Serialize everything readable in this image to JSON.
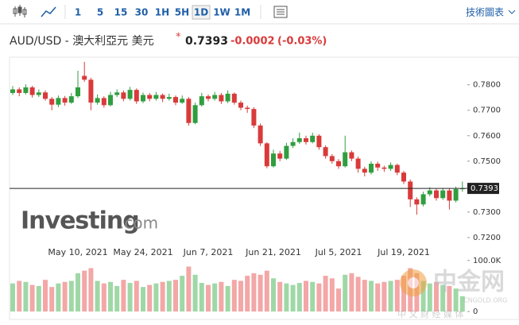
{
  "toolbar": {
    "timeframes": [
      "1",
      "5",
      "15",
      "30",
      "1H",
      "5H",
      "1D",
      "1W",
      "1M"
    ],
    "link": "技術圖表"
  },
  "chart_data": {
    "type": "candlestick",
    "title": "AUD/USD - 澳大利亞元 美元",
    "marker": "*",
    "last_value": 0.7393,
    "change": "-0.0002",
    "change_pct": "(-0.03%)",
    "logo": {
      "main": "Investing",
      "suffix": ".com"
    },
    "categories": [
      null,
      null,
      null,
      null,
      null,
      null,
      null,
      null,
      null,
      null,
      "May 10, 2021",
      null,
      null,
      null,
      null,
      null,
      null,
      null,
      null,
      null,
      "May 24, 2021",
      null,
      null,
      null,
      null,
      null,
      null,
      null,
      null,
      null,
      "Jun 7, 2021",
      null,
      null,
      null,
      null,
      null,
      null,
      null,
      null,
      null,
      "Jun 21, 2021",
      null,
      null,
      null,
      null,
      null,
      null,
      null,
      null,
      null,
      "Jul 5, 2021",
      null,
      null,
      null,
      null,
      null,
      null,
      null,
      null,
      null,
      "Jul 19, 2021",
      null,
      null,
      null,
      null,
      null,
      null,
      null,
      null,
      null
    ],
    "open": [
      0.7768,
      0.7782,
      0.7768,
      0.779,
      0.776,
      0.777,
      0.7745,
      0.7722,
      0.7748,
      0.773,
      0.7755,
      0.7835,
      0.782,
      0.773,
      0.7748,
      0.772,
      0.776,
      0.777,
      0.7745,
      0.778,
      0.7735,
      0.776,
      0.7745,
      0.776,
      0.7745,
      0.7752,
      0.773,
      0.7745,
      0.765,
      0.772,
      0.7755,
      0.7745,
      0.776,
      0.7735,
      0.7765,
      0.773,
      0.771,
      0.7705,
      0.764,
      0.757,
      0.748,
      0.753,
      0.751,
      0.756,
      0.7575,
      0.759,
      0.7575,
      0.76,
      0.7555,
      0.752,
      0.75,
      0.748,
      0.7535,
      0.751,
      0.747,
      0.7455,
      0.749,
      0.7475,
      0.747,
      0.7485,
      0.7455,
      0.742,
      0.735,
      0.733,
      0.737,
      0.7385,
      0.7355,
      0.7385,
      0.7345,
      0.739
    ],
    "high": [
      0.7795,
      0.779,
      0.7802,
      0.7796,
      0.7782,
      0.7778,
      0.7752,
      0.7758,
      0.7756,
      0.7768,
      0.7855,
      0.789,
      0.7828,
      0.7762,
      0.7755,
      0.7772,
      0.7782,
      0.7778,
      0.7792,
      0.7786,
      0.777,
      0.7768,
      0.7772,
      0.7766,
      0.7765,
      0.7758,
      0.7758,
      0.7752,
      0.773,
      0.7768,
      0.7762,
      0.7772,
      0.7768,
      0.7778,
      0.777,
      0.7738,
      0.7718,
      0.7712,
      0.7648,
      0.7575,
      0.7545,
      0.754,
      0.7572,
      0.759,
      0.7612,
      0.76,
      0.7612,
      0.7606,
      0.7562,
      0.7528,
      0.7508,
      0.76,
      0.7542,
      0.7518,
      0.7478,
      0.75,
      0.7498,
      0.7482,
      0.7495,
      0.749,
      0.7462,
      0.7428,
      0.7358,
      0.738,
      0.7398,
      0.7392,
      0.7395,
      0.7392,
      0.74,
      0.742
    ],
    "low": [
      0.776,
      0.7755,
      0.7762,
      0.775,
      0.7752,
      0.7738,
      0.77,
      0.7712,
      0.7718,
      0.7725,
      0.7748,
      0.7812,
      0.77,
      0.7722,
      0.771,
      0.7715,
      0.7752,
      0.7735,
      0.7738,
      0.7725,
      0.7728,
      0.7735,
      0.7738,
      0.7732,
      0.7738,
      0.772,
      0.7725,
      0.764,
      0.7645,
      0.7715,
      0.7735,
      0.7738,
      0.7725,
      0.7728,
      0.7722,
      0.77,
      0.769,
      0.763,
      0.756,
      0.7472,
      0.7475,
      0.75,
      0.7505,
      0.7552,
      0.7568,
      0.7565,
      0.757,
      0.7545,
      0.751,
      0.749,
      0.747,
      0.7475,
      0.75,
      0.7455,
      0.744,
      0.7448,
      0.7462,
      0.7458,
      0.7462,
      0.7445,
      0.741,
      0.732,
      0.729,
      0.7322,
      0.7362,
      0.7345,
      0.7348,
      0.731,
      0.7338,
      0.738
    ],
    "close": [
      0.7782,
      0.7768,
      0.779,
      0.776,
      0.777,
      0.7745,
      0.7722,
      0.7748,
      0.773,
      0.7755,
      0.779,
      0.782,
      0.773,
      0.7748,
      0.772,
      0.776,
      0.777,
      0.7745,
      0.778,
      0.7735,
      0.776,
      0.7745,
      0.776,
      0.7745,
      0.7752,
      0.773,
      0.7745,
      0.765,
      0.772,
      0.7755,
      0.7745,
      0.776,
      0.7735,
      0.7765,
      0.773,
      0.771,
      0.7705,
      0.764,
      0.757,
      0.748,
      0.753,
      0.751,
      0.756,
      0.7575,
      0.759,
      0.7575,
      0.76,
      0.7555,
      0.752,
      0.75,
      0.748,
      0.7535,
      0.751,
      0.747,
      0.7455,
      0.749,
      0.7475,
      0.747,
      0.7485,
      0.7455,
      0.742,
      0.735,
      0.733,
      0.737,
      0.7385,
      0.7355,
      0.7385,
      0.7345,
      0.739,
      0.7393
    ],
    "up_color": "#2f9e3f",
    "down_color": "#d93a3a",
    "ylim": [
      0.7181,
      0.7899
    ],
    "yticks": [
      {
        "value": 0.72,
        "label": "0.7200"
      },
      {
        "value": 0.73,
        "label": "0.7300"
      },
      {
        "value": 0.75,
        "label": "0.7500"
      },
      {
        "value": 0.76,
        "label": "0.7600"
      },
      {
        "value": 0.77,
        "label": "0.7700"
      },
      {
        "value": 0.78,
        "label": "0.7800"
      }
    ],
    "volume": {
      "values": [
        55000,
        60000,
        58000,
        52000,
        50000,
        62000,
        48000,
        55000,
        58000,
        60000,
        75000,
        80000,
        85000,
        60000,
        55000,
        58000,
        50000,
        62000,
        56000,
        60000,
        48000,
        52000,
        55000,
        58000,
        60000,
        62000,
        70000,
        88000,
        72000,
        56000,
        52000,
        55000,
        58000,
        50000,
        62000,
        60000,
        70000,
        75000,
        72000,
        80000,
        65000,
        58000,
        55000,
        52000,
        56000,
        60000,
        58000,
        55000,
        70000,
        65000,
        45000,
        72000,
        75000,
        68000,
        62000,
        60000,
        55000,
        58000,
        60000,
        62000,
        70000,
        85000,
        75000,
        60000,
        55000,
        58000,
        52000,
        50000,
        45000,
        30000
      ],
      "up_color": "#9fd8a6",
      "down_color": "#f3a7a7",
      "ylim": [
        0,
        109000
      ],
      "yticks": [
        {
          "value": 100000,
          "label": "100.0K"
        },
        0
      ]
    }
  },
  "watermark": {
    "name": "中金网",
    "site": "CNGOLD.ORG",
    "slogan": "中 文 财 经 媒 体"
  }
}
